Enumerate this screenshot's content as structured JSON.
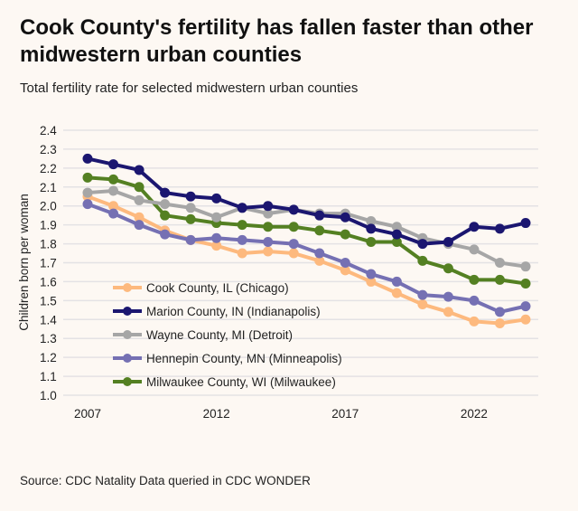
{
  "chart_data": {
    "type": "line",
    "title": "Cook County's fertility has fallen faster than other midwestern urban counties",
    "subtitle": "Total fertility rate for selected midwestern urban counties",
    "ylabel": "Children born per woman",
    "xlabel": "",
    "source": "Source: CDC Natality Data queried in CDC WONDER",
    "x": [
      2007,
      2008,
      2009,
      2010,
      2011,
      2012,
      2013,
      2014,
      2015,
      2016,
      2017,
      2018,
      2019,
      2020,
      2021,
      2022,
      2023,
      2024
    ],
    "xticks": [
      "2007",
      "2012",
      "2017",
      "2022"
    ],
    "yticks": [
      "2.4",
      "2.3",
      "2.2",
      "2.1",
      "2.0",
      "1.9",
      "1.8",
      "1.7",
      "1.6",
      "1.5",
      "1.4",
      "1.3",
      "1.2",
      "1.1",
      "1.0"
    ],
    "ylim": [
      1.0,
      2.4
    ],
    "grid": "horizontal",
    "legend": "bottom-left",
    "series": [
      {
        "name": "Cook County, IL (Chicago)",
        "color": "#fdb97e",
        "values": [
          2.05,
          2.0,
          1.94,
          1.87,
          1.82,
          1.79,
          1.75,
          1.76,
          1.75,
          1.71,
          1.66,
          1.6,
          1.54,
          1.48,
          1.44,
          1.39,
          1.38,
          1.4
        ]
      },
      {
        "name": "Marion County, IN (Indianapolis)",
        "color": "#1b1670",
        "values": [
          2.25,
          2.22,
          2.19,
          2.07,
          2.05,
          2.04,
          1.99,
          2.0,
          1.98,
          1.95,
          1.94,
          1.88,
          1.85,
          1.8,
          1.81,
          1.89,
          1.88,
          1.91
        ]
      },
      {
        "name": "Wayne County, MI (Detroit)",
        "color": "#a6a6a6",
        "values": [
          2.07,
          2.08,
          2.03,
          2.01,
          1.99,
          1.94,
          1.99,
          1.96,
          1.98,
          1.96,
          1.96,
          1.92,
          1.89,
          1.83,
          1.8,
          1.77,
          1.7,
          1.68
        ]
      },
      {
        "name": "Hennepin County, MN (Minneapolis)",
        "color": "#7570b3",
        "values": [
          2.01,
          1.96,
          1.9,
          1.85,
          1.82,
          1.83,
          1.82,
          1.81,
          1.8,
          1.75,
          1.7,
          1.64,
          1.6,
          1.53,
          1.52,
          1.5,
          1.44,
          1.47
        ]
      },
      {
        "name": "Milwaukee County, WI (Milwaukee)",
        "color": "#548022",
        "values": [
          2.15,
          2.14,
          2.1,
          1.95,
          1.93,
          1.91,
          1.9,
          1.89,
          1.89,
          1.87,
          1.85,
          1.81,
          1.81,
          1.71,
          1.67,
          1.61,
          1.61,
          1.59
        ]
      }
    ]
  }
}
